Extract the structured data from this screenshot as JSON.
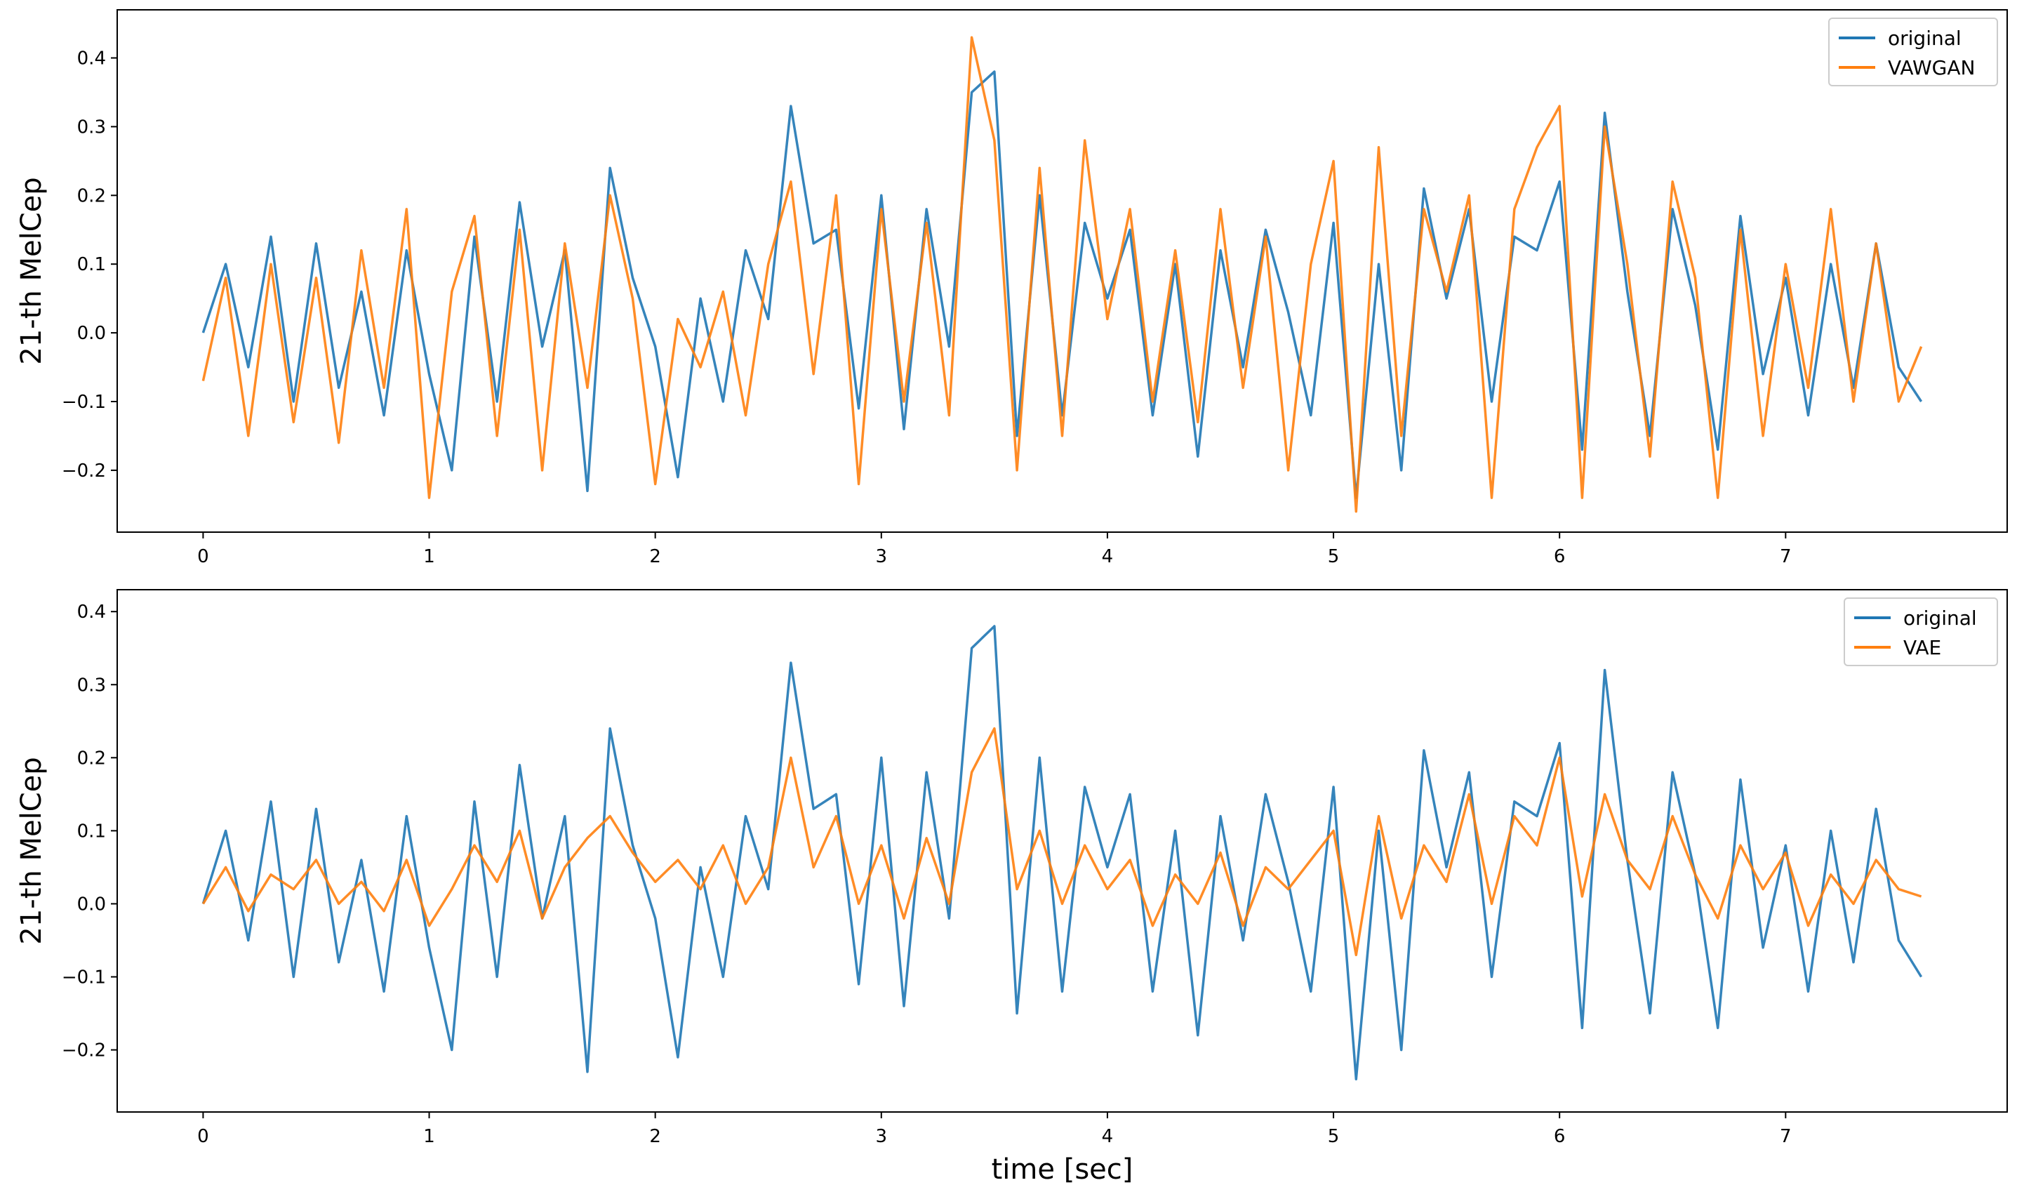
{
  "colors": {
    "original": "#1f77b4",
    "reconstruction": "#ff7f0e"
  },
  "chart_data": [
    {
      "type": "line",
      "ylabel": "21-th MelCep",
      "xlabel": "",
      "xlim": [
        -0.38,
        7.98
      ],
      "ylim": [
        -0.29,
        0.47
      ],
      "xticks": [
        0,
        1,
        2,
        3,
        4,
        5,
        6,
        7
      ],
      "yticks": [
        -0.2,
        -0.1,
        0.0,
        0.1,
        0.2,
        0.3,
        0.4
      ],
      "ytick_labels": [
        "−0.2",
        "−0.1",
        "0.0",
        "0.1",
        "0.2",
        "0.3",
        "0.4"
      ],
      "legend_position": "top-right",
      "series": [
        {
          "name": "original",
          "x": [
            0,
            0.1,
            0.2,
            0.3,
            0.4,
            0.5,
            0.6,
            0.7,
            0.8,
            0.9,
            1,
            1.1,
            1.2,
            1.3,
            1.4,
            1.5,
            1.6,
            1.7,
            1.8,
            1.9,
            2,
            2.1,
            2.2,
            2.3,
            2.4,
            2.5,
            2.6,
            2.7,
            2.8,
            2.9,
            3,
            3.1,
            3.2,
            3.3,
            3.4,
            3.5,
            3.6,
            3.7,
            3.8,
            3.9,
            4,
            4.1,
            4.2,
            4.3,
            4.4,
            4.5,
            4.6,
            4.7,
            4.8,
            4.9,
            5,
            5.1,
            5.2,
            5.3,
            5.4,
            5.5,
            5.6,
            5.7,
            5.8,
            5.9,
            6,
            6.1,
            6.2,
            6.3,
            6.4,
            6.5,
            6.6,
            6.7,
            6.8,
            6.9,
            7,
            7.1,
            7.2,
            7.3,
            7.4,
            7.5,
            7.6
          ],
          "y": [
            0.0,
            0.1,
            -0.05,
            0.14,
            -0.1,
            0.13,
            -0.08,
            0.06,
            -0.12,
            0.12,
            -0.06,
            -0.2,
            0.14,
            -0.1,
            0.19,
            -0.02,
            0.12,
            -0.23,
            0.24,
            0.08,
            -0.02,
            -0.21,
            0.05,
            -0.1,
            0.12,
            0.02,
            0.33,
            0.13,
            0.15,
            -0.11,
            0.2,
            -0.14,
            0.18,
            -0.02,
            0.35,
            0.38,
            -0.15,
            0.2,
            -0.12,
            0.16,
            0.05,
            0.15,
            -0.12,
            0.1,
            -0.18,
            0.12,
            -0.05,
            0.15,
            0.03,
            -0.12,
            0.16,
            -0.24,
            0.1,
            -0.2,
            0.21,
            0.05,
            0.18,
            -0.1,
            0.14,
            0.12,
            0.22,
            -0.17,
            0.32,
            0.06,
            -0.15,
            0.18,
            0.04,
            -0.17,
            0.17,
            -0.06,
            0.08,
            -0.12,
            0.1,
            -0.08,
            0.13,
            -0.05,
            -0.1
          ]
        },
        {
          "name": "VAWGAN",
          "x": [
            0,
            0.1,
            0.2,
            0.3,
            0.4,
            0.5,
            0.6,
            0.7,
            0.8,
            0.9,
            1,
            1.1,
            1.2,
            1.3,
            1.4,
            1.5,
            1.6,
            1.7,
            1.8,
            1.9,
            2,
            2.1,
            2.2,
            2.3,
            2.4,
            2.5,
            2.6,
            2.7,
            2.8,
            2.9,
            3,
            3.1,
            3.2,
            3.3,
            3.4,
            3.5,
            3.6,
            3.7,
            3.8,
            3.9,
            4,
            4.1,
            4.2,
            4.3,
            4.4,
            4.5,
            4.6,
            4.7,
            4.8,
            4.9,
            5,
            5.1,
            5.2,
            5.3,
            5.4,
            5.5,
            5.6,
            5.7,
            5.8,
            5.9,
            6,
            6.1,
            6.2,
            6.3,
            6.4,
            6.5,
            6.6,
            6.7,
            6.8,
            6.9,
            7,
            7.1,
            7.2,
            7.3,
            7.4,
            7.5,
            7.6
          ],
          "y": [
            -0.07,
            0.08,
            -0.15,
            0.1,
            -0.13,
            0.08,
            -0.16,
            0.12,
            -0.08,
            0.18,
            -0.24,
            0.06,
            0.17,
            -0.15,
            0.15,
            -0.2,
            0.13,
            -0.08,
            0.2,
            0.05,
            -0.22,
            0.02,
            -0.05,
            0.06,
            -0.12,
            0.1,
            0.22,
            -0.06,
            0.2,
            -0.22,
            0.18,
            -0.1,
            0.16,
            -0.12,
            0.43,
            0.28,
            -0.2,
            0.24,
            -0.15,
            0.28,
            0.02,
            0.18,
            -0.1,
            0.12,
            -0.13,
            0.18,
            -0.08,
            0.14,
            -0.2,
            0.1,
            0.25,
            -0.26,
            0.27,
            -0.15,
            0.18,
            0.06,
            0.2,
            -0.24,
            0.18,
            0.27,
            0.33,
            -0.24,
            0.3,
            0.1,
            -0.18,
            0.22,
            0.08,
            -0.24,
            0.15,
            -0.15,
            0.1,
            -0.08,
            0.18,
            -0.1,
            0.13,
            -0.1,
            -0.02
          ]
        }
      ]
    },
    {
      "type": "line",
      "ylabel": "21-th MelCep",
      "xlabel": "time [sec]",
      "xlim": [
        -0.38,
        7.98
      ],
      "ylim": [
        -0.285,
        0.43
      ],
      "xticks": [
        0,
        1,
        2,
        3,
        4,
        5,
        6,
        7
      ],
      "yticks": [
        -0.2,
        -0.1,
        0.0,
        0.1,
        0.2,
        0.3,
        0.4
      ],
      "ytick_labels": [
        "−0.2",
        "−0.1",
        "0.0",
        "0.1",
        "0.2",
        "0.3",
        "0.4"
      ],
      "legend_position": "top-right",
      "series": [
        {
          "name": "original",
          "x": [
            0,
            0.1,
            0.2,
            0.3,
            0.4,
            0.5,
            0.6,
            0.7,
            0.8,
            0.9,
            1,
            1.1,
            1.2,
            1.3,
            1.4,
            1.5,
            1.6,
            1.7,
            1.8,
            1.9,
            2,
            2.1,
            2.2,
            2.3,
            2.4,
            2.5,
            2.6,
            2.7,
            2.8,
            2.9,
            3,
            3.1,
            3.2,
            3.3,
            3.4,
            3.5,
            3.6,
            3.7,
            3.8,
            3.9,
            4,
            4.1,
            4.2,
            4.3,
            4.4,
            4.5,
            4.6,
            4.7,
            4.8,
            4.9,
            5,
            5.1,
            5.2,
            5.3,
            5.4,
            5.5,
            5.6,
            5.7,
            5.8,
            5.9,
            6,
            6.1,
            6.2,
            6.3,
            6.4,
            6.5,
            6.6,
            6.7,
            6.8,
            6.9,
            7,
            7.1,
            7.2,
            7.3,
            7.4,
            7.5,
            7.6
          ],
          "y": [
            0.0,
            0.1,
            -0.05,
            0.14,
            -0.1,
            0.13,
            -0.08,
            0.06,
            -0.12,
            0.12,
            -0.06,
            -0.2,
            0.14,
            -0.1,
            0.19,
            -0.02,
            0.12,
            -0.23,
            0.24,
            0.08,
            -0.02,
            -0.21,
            0.05,
            -0.1,
            0.12,
            0.02,
            0.33,
            0.13,
            0.15,
            -0.11,
            0.2,
            -0.14,
            0.18,
            -0.02,
            0.35,
            0.38,
            -0.15,
            0.2,
            -0.12,
            0.16,
            0.05,
            0.15,
            -0.12,
            0.1,
            -0.18,
            0.12,
            -0.05,
            0.15,
            0.03,
            -0.12,
            0.16,
            -0.24,
            0.1,
            -0.2,
            0.21,
            0.05,
            0.18,
            -0.1,
            0.14,
            0.12,
            0.22,
            -0.17,
            0.32,
            0.06,
            -0.15,
            0.18,
            0.04,
            -0.17,
            0.17,
            -0.06,
            0.08,
            -0.12,
            0.1,
            -0.08,
            0.13,
            -0.05,
            -0.1
          ]
        },
        {
          "name": "VAE",
          "x": [
            0,
            0.1,
            0.2,
            0.3,
            0.4,
            0.5,
            0.6,
            0.7,
            0.8,
            0.9,
            1,
            1.1,
            1.2,
            1.3,
            1.4,
            1.5,
            1.6,
            1.7,
            1.8,
            1.9,
            2,
            2.1,
            2.2,
            2.3,
            2.4,
            2.5,
            2.6,
            2.7,
            2.8,
            2.9,
            3,
            3.1,
            3.2,
            3.3,
            3.4,
            3.5,
            3.6,
            3.7,
            3.8,
            3.9,
            4,
            4.1,
            4.2,
            4.3,
            4.4,
            4.5,
            4.6,
            4.7,
            4.8,
            4.9,
            5,
            5.1,
            5.2,
            5.3,
            5.4,
            5.5,
            5.6,
            5.7,
            5.8,
            5.9,
            6,
            6.1,
            6.2,
            6.3,
            6.4,
            6.5,
            6.6,
            6.7,
            6.8,
            6.9,
            7,
            7.1,
            7.2,
            7.3,
            7.4,
            7.5,
            7.6
          ],
          "y": [
            0.0,
            0.05,
            -0.01,
            0.04,
            0.02,
            0.06,
            0.0,
            0.03,
            -0.01,
            0.06,
            -0.03,
            0.02,
            0.08,
            0.03,
            0.1,
            -0.02,
            0.05,
            0.09,
            0.12,
            0.07,
            0.03,
            0.06,
            0.02,
            0.08,
            0.0,
            0.05,
            0.2,
            0.05,
            0.12,
            0.0,
            0.08,
            -0.02,
            0.09,
            0.0,
            0.18,
            0.24,
            0.02,
            0.1,
            0.0,
            0.08,
            0.02,
            0.06,
            -0.03,
            0.04,
            0.0,
            0.07,
            -0.03,
            0.05,
            0.02,
            0.06,
            0.1,
            -0.07,
            0.12,
            -0.02,
            0.08,
            0.03,
            0.15,
            0.0,
            0.12,
            0.08,
            0.2,
            0.01,
            0.15,
            0.06,
            0.02,
            0.12,
            0.04,
            -0.02,
            0.08,
            0.02,
            0.07,
            -0.03,
            0.04,
            0.0,
            0.06,
            0.02,
            0.01
          ]
        }
      ]
    }
  ]
}
